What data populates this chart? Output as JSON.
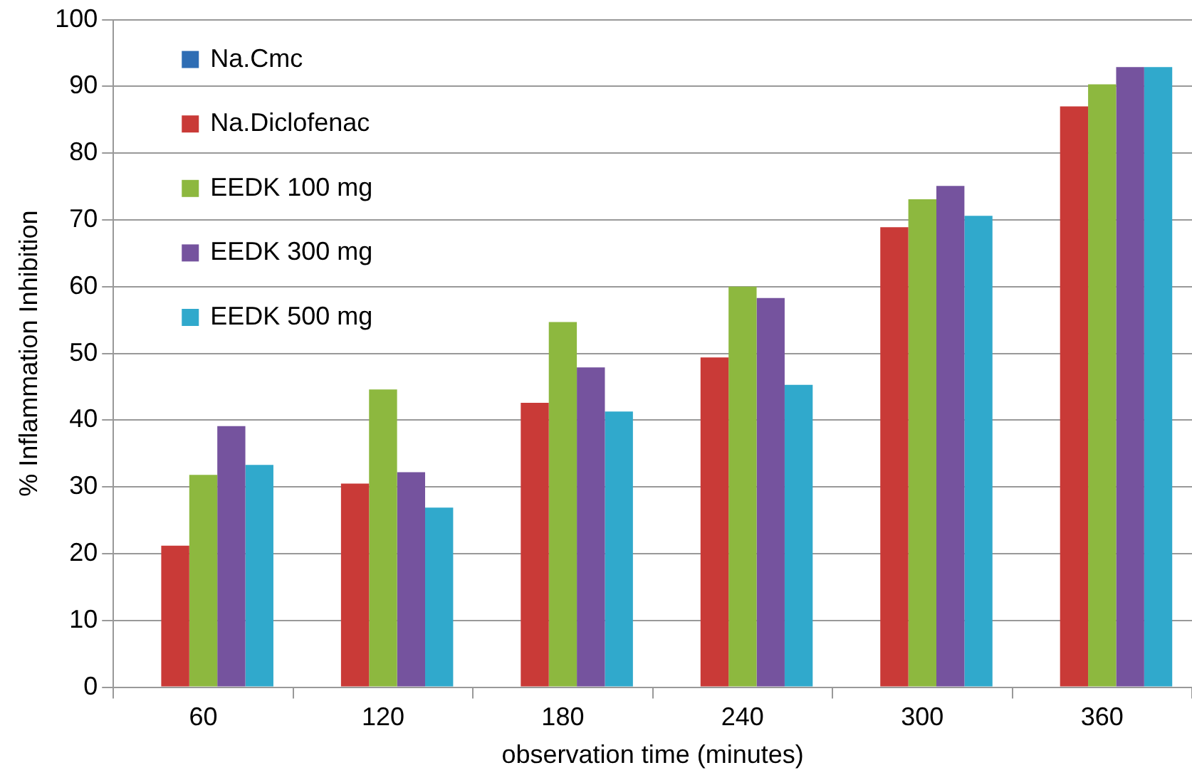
{
  "chart_data": {
    "type": "bar",
    "xlabel": "observation time (minutes)",
    "ylabel": "% Inflammation Inhibition",
    "categories": [
      "60",
      "120",
      "180",
      "240",
      "300",
      "360"
    ],
    "series": [
      {
        "name": "Na.Cmc",
        "color": "#2e6db4",
        "values": [
          0,
          0,
          0,
          0,
          0,
          0
        ]
      },
      {
        "name": "Na.Diclofenac",
        "color": "#c93a37",
        "values": [
          21.2,
          30.5,
          42.6,
          49.4,
          68.9,
          87.0
        ]
      },
      {
        "name": "EEDK 100 mg",
        "color": "#8db83f",
        "values": [
          31.8,
          44.6,
          54.7,
          60.0,
          73.1,
          90.3
        ]
      },
      {
        "name": "EEDK 300 mg",
        "color": "#75539e",
        "values": [
          39.1,
          32.2,
          47.9,
          58.3,
          75.1,
          92.9
        ]
      },
      {
        "name": "EEDK 500 mg",
        "color": "#30a9cc",
        "values": [
          33.3,
          26.9,
          41.3,
          45.3,
          70.6,
          92.9
        ]
      }
    ],
    "ylim": [
      0,
      100
    ],
    "yticks": [
      0,
      10,
      20,
      30,
      40,
      50,
      60,
      70,
      80,
      90,
      100
    ],
    "grid": "y",
    "legend": "top left"
  }
}
